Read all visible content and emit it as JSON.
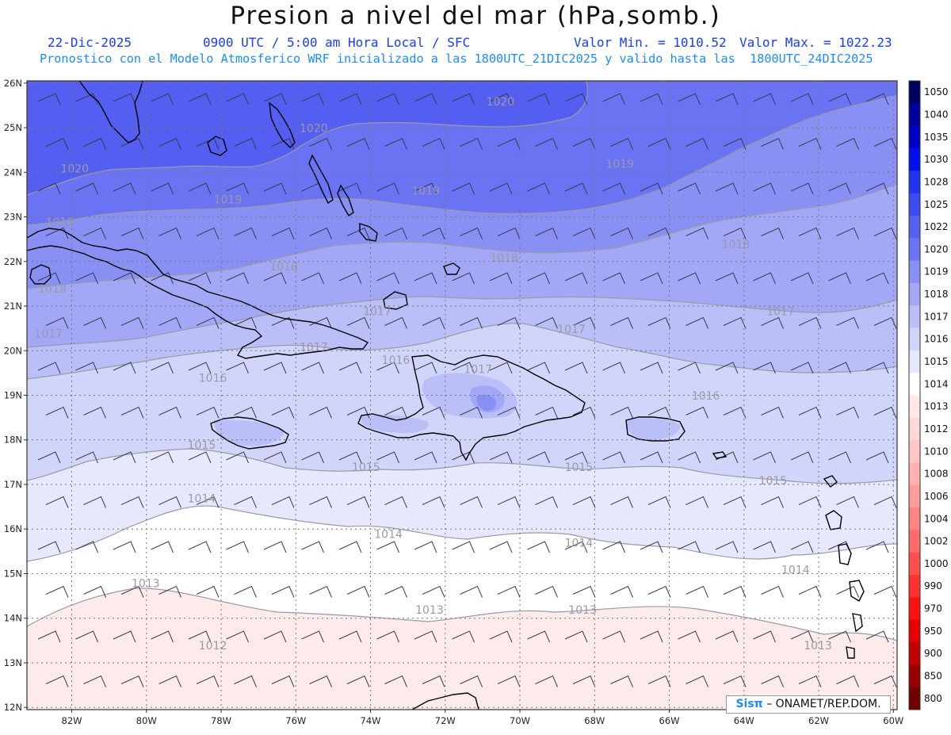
{
  "title": "Presion a nivel del mar (hPa,somb.)",
  "header": {
    "date": "22-Dic-2025",
    "time": "0900 UTC / 5:00 am Hora Local / SFC",
    "min": "Valor Min. = 1010.52",
    "max": "Valor Max. = 1022.23",
    "forecast": "Pronostico con el Modelo Atmosferico WRF inicializado a las 1800UTC_21DIC2025 y valido hasta las  1800UTC_24DIC2025"
  },
  "credit": {
    "brand": "Sisπ",
    "org": "– ONAMET/REP.DOM."
  },
  "lat_labels": [
    "26N",
    "25N",
    "24N",
    "23N",
    "22N",
    "21N",
    "20N",
    "19N",
    "18N",
    "17N",
    "16N",
    "15N",
    "14N",
    "13N",
    "12N"
  ],
  "lon_labels": [
    "82W",
    "80W",
    "78W",
    "76W",
    "74W",
    "72W",
    "70W",
    "68W",
    "66W",
    "64W",
    "62W",
    "60W"
  ],
  "colorbar": {
    "labels": [
      "1050",
      "1040",
      "1035",
      "1030",
      "1028",
      "1025",
      "1022",
      "1020",
      "1019",
      "1018",
      "1017",
      "1016",
      "1015",
      "1014",
      "1013",
      "1012",
      "1010",
      "1008",
      "1006",
      "1004",
      "1002",
      "1000",
      "990",
      "970",
      "950",
      "900",
      "850",
      "800"
    ],
    "colors": [
      "#000060",
      "#00009c",
      "#0000c8",
      "#0010ee",
      "#1f34f0",
      "#3a4cf0",
      "#5460f0",
      "#6a74f2",
      "#8890f4",
      "#a2a8f6",
      "#babff8",
      "#d2d5fa",
      "#e6e8fc",
      "#ffffff",
      "#ffe8e8",
      "#ffd8d8",
      "#ffc6c6",
      "#ffb2b2",
      "#ff9c9c",
      "#ff8484",
      "#ff6c6c",
      "#ff5050",
      "#ff3030",
      "#ff1010",
      "#e80000",
      "#c00000",
      "#980000",
      "#700000"
    ]
  },
  "isobar_labels": [
    {
      "text": "1020",
      "lat": 25.5,
      "lon": -70.9
    },
    {
      "text": "1020",
      "lat": 24.9,
      "lon": -75.9
    },
    {
      "text": "1020",
      "lat": 24.0,
      "lon": -82.3
    },
    {
      "text": "1019",
      "lat": 24.1,
      "lon": -67.7
    },
    {
      "text": "1019",
      "lat": 23.5,
      "lon": -72.9
    },
    {
      "text": "1019",
      "lat": 23.3,
      "lon": -78.2
    },
    {
      "text": "1019",
      "lat": 22.8,
      "lon": -82.7
    },
    {
      "text": "1018",
      "lat": 22.0,
      "lon": -70.8
    },
    {
      "text": "1018",
      "lat": 21.8,
      "lon": -76.7
    },
    {
      "text": "1018",
      "lat": 21.3,
      "lon": -82.9
    },
    {
      "text": "1018",
      "lat": 22.3,
      "lon": -64.6
    },
    {
      "text": "1017",
      "lat": 20.8,
      "lon": -74.2
    },
    {
      "text": "1017",
      "lat": 20.4,
      "lon": -69.0
    },
    {
      "text": "1017",
      "lat": 20.3,
      "lon": -83.0
    },
    {
      "text": "1017",
      "lat": 20.0,
      "lon": -75.9
    },
    {
      "text": "1017",
      "lat": 19.5,
      "lon": -71.5
    },
    {
      "text": "1017",
      "lat": 20.8,
      "lon": -63.4
    },
    {
      "text": "1016",
      "lat": 19.7,
      "lon": -73.7
    },
    {
      "text": "1016",
      "lat": 19.3,
      "lon": -78.6
    },
    {
      "text": "1016",
      "lat": 18.9,
      "lon": -65.4
    },
    {
      "text": "1015",
      "lat": 17.8,
      "lon": -78.9
    },
    {
      "text": "1015",
      "lat": 17.3,
      "lon": -74.5
    },
    {
      "text": "1015",
      "lat": 17.3,
      "lon": -68.8
    },
    {
      "text": "1015",
      "lat": 17.0,
      "lon": -63.6
    },
    {
      "text": "1014",
      "lat": 16.6,
      "lon": -78.9
    },
    {
      "text": "1014",
      "lat": 15.8,
      "lon": -73.9
    },
    {
      "text": "1014",
      "lat": 15.6,
      "lon": -68.8
    },
    {
      "text": "1014",
      "lat": 15.0,
      "lon": -63.0
    },
    {
      "text": "1013",
      "lat": 14.7,
      "lon": -80.4
    },
    {
      "text": "1013",
      "lat": 14.1,
      "lon": -72.8
    },
    {
      "text": "1013",
      "lat": 14.1,
      "lon": -68.7
    },
    {
      "text": "1013",
      "lat": 13.3,
      "lon": -62.4
    },
    {
      "text": "1012",
      "lat": 13.3,
      "lon": -78.6
    }
  ]
}
